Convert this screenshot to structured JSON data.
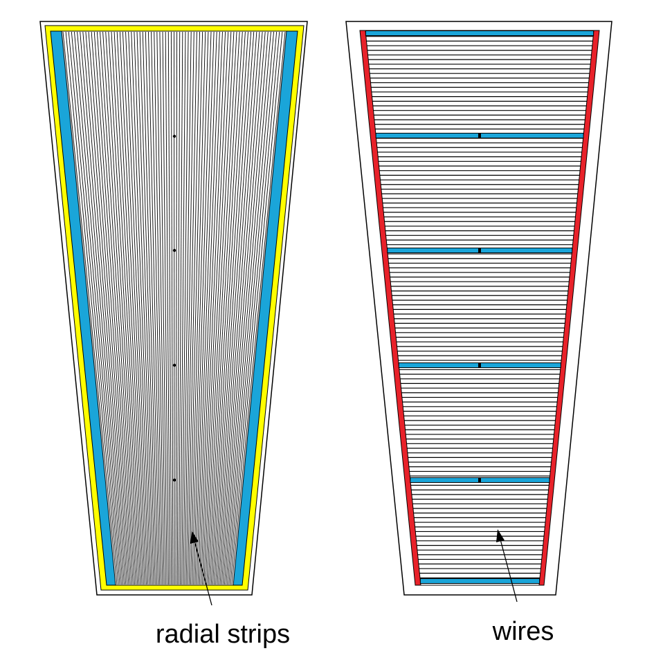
{
  "colors": {
    "background": "#ffffff",
    "outline": "#000000",
    "frame_yellow": "#ffff00",
    "frame_blue": "#1aa5d9",
    "frame_red": "#e8222a",
    "lines": "#000000"
  },
  "left_panel": {
    "label": "radial strips",
    "strip_count": 79,
    "readout_dot_count": 4
  },
  "right_panel": {
    "label": "wires",
    "wire_count": 120,
    "support_bar_count": 6,
    "readout_dot_count": 4
  }
}
